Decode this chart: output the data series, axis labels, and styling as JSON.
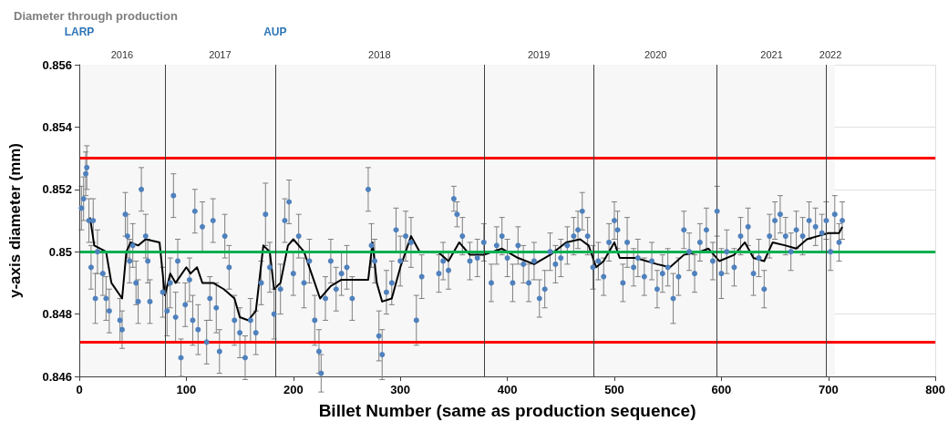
{
  "chart_data": {
    "type": "scatter",
    "title": "Diameter through production",
    "xlabel": "Billet Number (same as production sequence)",
    "ylabel": "y-axis diameter (mm)",
    "xlim": [
      0,
      800
    ],
    "xticks": [
      0,
      100,
      200,
      300,
      400,
      500,
      600,
      700,
      800
    ],
    "ylim": [
      0.846,
      0.856
    ],
    "yticks": [
      0.846,
      0.848,
      0.85,
      0.852,
      0.854,
      0.856
    ],
    "grid": true,
    "series": [
      {
        "color": "#4f81bd",
        "marker": "circle",
        "x": [
          2,
          4,
          6,
          7,
          9,
          11,
          13,
          15,
          17,
          22,
          25,
          28,
          38,
          40,
          43,
          45,
          47,
          50,
          53,
          55,
          58,
          62,
          64,
          66,
          78,
          82,
          85,
          88,
          90,
          92,
          95,
          99,
          103,
          106,
          108,
          111,
          115,
          119,
          122,
          125,
          128,
          131,
          136,
          140,
          145,
          150,
          155,
          160,
          165,
          170,
          174,
          178,
          182,
          188,
          192,
          196,
          200,
          205,
          210,
          215,
          220,
          224,
          226,
          230,
          235,
          240,
          245,
          250,
          255,
          270,
          273,
          276,
          280,
          283,
          287,
          292,
          296,
          300,
          305,
          310,
          315,
          320,
          336,
          340,
          345,
          350,
          353,
          358,
          365,
          372,
          378,
          385,
          390,
          395,
          400,
          405,
          410,
          415,
          420,
          425,
          430,
          435,
          440,
          445,
          450,
          456,
          462,
          466,
          470,
          475,
          480,
          485,
          490,
          495,
          500,
          503,
          508,
          512,
          518,
          522,
          528,
          535,
          540,
          545,
          550,
          555,
          560,
          565,
          570,
          575,
          580,
          586,
          592,
          596,
          600,
          605,
          612,
          618,
          625,
          630,
          635,
          640,
          645,
          650,
          655,
          660,
          665,
          670,
          676,
          682,
          688,
          694,
          698,
          702,
          706,
          710,
          713
        ],
        "values": [
          0.8514,
          0.8517,
          0.8525,
          0.8527,
          0.851,
          0.8495,
          0.851,
          0.8485,
          0.85,
          0.8493,
          0.8485,
          0.8481,
          0.8478,
          0.8475,
          0.8512,
          0.8505,
          0.8497,
          0.8502,
          0.849,
          0.8484,
          0.852,
          0.8505,
          0.8497,
          0.8484,
          0.8487,
          0.8481,
          0.849,
          0.8518,
          0.8479,
          0.8497,
          0.8466,
          0.8483,
          0.8491,
          0.8478,
          0.8513,
          0.8475,
          0.8508,
          0.8471,
          0.8485,
          0.851,
          0.8482,
          0.8468,
          0.8505,
          0.8495,
          0.8478,
          0.8474,
          0.8466,
          0.8478,
          0.8474,
          0.849,
          0.8512,
          0.8495,
          0.848,
          0.8488,
          0.851,
          0.8516,
          0.8493,
          0.8505,
          0.849,
          0.8497,
          0.8478,
          0.8468,
          0.8461,
          0.8485,
          0.8497,
          0.8488,
          0.8493,
          0.8495,
          0.8485,
          0.852,
          0.8502,
          0.8497,
          0.8473,
          0.8467,
          0.8487,
          0.849,
          0.8507,
          0.8497,
          0.8505,
          0.8503,
          0.8478,
          0.8492,
          0.8493,
          0.8497,
          0.8494,
          0.8517,
          0.8512,
          0.8505,
          0.8497,
          0.8498,
          0.8503,
          0.849,
          0.8502,
          0.8505,
          0.8498,
          0.849,
          0.8502,
          0.8496,
          0.849,
          0.8497,
          0.8485,
          0.8488,
          0.85,
          0.8496,
          0.8498,
          0.8502,
          0.8505,
          0.8507,
          0.8513,
          0.8505,
          0.8495,
          0.8497,
          0.8492,
          0.8503,
          0.851,
          0.8507,
          0.849,
          0.8503,
          0.8495,
          0.8498,
          0.8492,
          0.8497,
          0.8488,
          0.8493,
          0.8495,
          0.8485,
          0.8492,
          0.8507,
          0.85,
          0.8493,
          0.8503,
          0.8507,
          0.8497,
          0.8513,
          0.8493,
          0.85,
          0.8495,
          0.8505,
          0.8508,
          0.8493,
          0.8498,
          0.8488,
          0.8505,
          0.851,
          0.8512,
          0.8505,
          0.85,
          0.8507,
          0.8505,
          0.851,
          0.8508,
          0.8506,
          0.851,
          0.85,
          0.8512,
          0.8503,
          0.851
        ],
        "errors": [
          0.0007,
          0.0007,
          0.0007,
          0.0007,
          0.0007,
          0.0007,
          0.0007,
          0.0008,
          0.0007,
          0.0007,
          0.0007,
          0.0007,
          0.0007,
          0.0006,
          0.0007,
          0.0007,
          0.0007,
          0.0007,
          0.0007,
          0.0007,
          0.0007,
          0.0007,
          0.0007,
          0.0007,
          0.0008,
          0.0008,
          0.0008,
          0.0007,
          0.0008,
          0.0007,
          0.0006,
          0.0007,
          0.0007,
          0.0008,
          0.0007,
          0.0008,
          0.0008,
          0.0007,
          0.0007,
          0.0007,
          0.0008,
          0.0007,
          0.0007,
          0.0007,
          0.0008,
          0.0008,
          0.0007,
          0.0007,
          0.0007,
          0.0007,
          0.001,
          0.0008,
          0.0008,
          0.0008,
          0.0007,
          0.0007,
          0.0007,
          0.0007,
          0.0008,
          0.0007,
          0.0008,
          0.0007,
          0.0006,
          0.0007,
          0.0007,
          0.0007,
          0.0007,
          0.0007,
          0.0007,
          0.0007,
          0.0007,
          0.0007,
          0.0008,
          0.0008,
          0.0007,
          0.0007,
          0.0007,
          0.0008,
          0.0008,
          0.0008,
          0.0008,
          0.0007,
          0.0006,
          0.0006,
          0.0006,
          0.0004,
          0.0004,
          0.0006,
          0.0006,
          0.0006,
          0.0006,
          0.0006,
          0.0006,
          0.0006,
          0.0006,
          0.0006,
          0.0006,
          0.0006,
          0.0006,
          0.0006,
          0.0006,
          0.0006,
          0.0006,
          0.0006,
          0.0006,
          0.0006,
          0.0006,
          0.0006,
          0.0006,
          0.0006,
          0.0007,
          0.0006,
          0.0006,
          0.0006,
          0.0006,
          0.0006,
          0.0006,
          0.0008,
          0.0006,
          0.0006,
          0.0006,
          0.0006,
          0.0006,
          0.0006,
          0.0006,
          0.0008,
          0.0006,
          0.0006,
          0.0006,
          0.0006,
          0.0006,
          0.0007,
          0.0006,
          0.0008,
          0.0008,
          0.0007,
          0.0006,
          0.0006,
          0.0006,
          0.0007,
          0.0006,
          0.0006,
          0.0007,
          0.0006,
          0.0006,
          0.0006,
          0.0006,
          0.0006,
          0.0006,
          0.0006,
          0.0006,
          0.0006,
          0.0006,
          0.0006,
          0.0006,
          0.0006,
          0.0006
        ]
      },
      {
        "type": "line",
        "color": "#000000",
        "marker": "none",
        "line_style": "solid",
        "x": [
          10,
          14,
          25,
          30,
          40,
          44,
          48,
          55,
          62,
          75,
          80,
          85,
          90,
          100,
          104,
          110,
          115,
          125,
          135,
          145,
          150,
          158,
          165,
          172,
          178,
          182,
          188,
          195,
          200,
          210,
          220,
          225,
          235,
          245,
          255,
          270,
          274,
          278,
          283,
          292,
          300,
          310,
          318,
          335,
          345,
          355,
          365,
          378,
          395,
          410,
          425,
          440,
          455,
          468,
          476,
          483,
          490,
          500,
          505,
          520,
          540,
          552,
          565,
          580,
          588,
          598,
          612,
          622,
          630,
          640,
          648,
          660,
          670,
          680,
          690,
          700,
          710,
          713
        ],
        "values": [
          0.8511,
          0.8502,
          0.85,
          0.849,
          0.8485,
          0.85,
          0.8503,
          0.8502,
          0.8504,
          0.8503,
          0.8486,
          0.8493,
          0.849,
          0.8495,
          0.8493,
          0.8495,
          0.849,
          0.849,
          0.8488,
          0.8485,
          0.8479,
          0.8478,
          0.8481,
          0.8502,
          0.85,
          0.8488,
          0.849,
          0.8502,
          0.8504,
          0.85,
          0.849,
          0.8485,
          0.8489,
          0.8491,
          0.8491,
          0.8491,
          0.8503,
          0.849,
          0.8484,
          0.8485,
          0.8495,
          0.8505,
          0.85,
          0.85,
          0.8497,
          0.8503,
          0.8499,
          0.8499,
          0.8501,
          0.8498,
          0.8496,
          0.8499,
          0.8503,
          0.8504,
          0.8502,
          0.8495,
          0.8497,
          0.8503,
          0.8498,
          0.8498,
          0.8496,
          0.8495,
          0.8499,
          0.85,
          0.8501,
          0.8497,
          0.8499,
          0.8503,
          0.8498,
          0.8497,
          0.8503,
          0.8502,
          0.8501,
          0.8504,
          0.8505,
          0.8506,
          0.8506,
          0.8508
        ]
      }
    ],
    "ref_lines": [
      {
        "axis": "y",
        "value": 0.853,
        "label": null,
        "color": "#ff0000",
        "line_style": "solid"
      },
      {
        "axis": "y",
        "value": 0.8471,
        "label": null,
        "color": "#ff0000",
        "line_style": "solid"
      },
      {
        "axis": "y",
        "value": 0.85,
        "label": null,
        "color": "#00b050",
        "line_style": "solid"
      },
      {
        "axis": "x",
        "value": 0,
        "label": "LARP",
        "color": "#404040",
        "line_style": "solid"
      },
      {
        "axis": "x",
        "value": 80,
        "label": null,
        "color": "#404040",
        "line_style": "solid"
      },
      {
        "axis": "x",
        "value": 183,
        "label": "AUP",
        "color": "#404040",
        "line_style": "solid"
      },
      {
        "axis": "x",
        "value": 378,
        "label": null,
        "color": "#404040",
        "line_style": "solid"
      },
      {
        "axis": "x",
        "value": 481,
        "label": null,
        "color": "#404040",
        "line_style": "solid"
      },
      {
        "axis": "x",
        "value": 596,
        "label": null,
        "color": "#404040",
        "line_style": "solid"
      },
      {
        "axis": "x",
        "value": 698,
        "label": null,
        "color": "#404040",
        "line_style": "solid"
      }
    ],
    "bands": [
      {
        "axis": "x",
        "from": 0,
        "to": 80,
        "label": "2016",
        "color": "#f7f7f7"
      },
      {
        "axis": "x",
        "from": 80,
        "to": 183,
        "label": "2017",
        "color": "#f7f7f7"
      },
      {
        "axis": "x",
        "from": 183,
        "to": 378,
        "label": "2018",
        "color": "#f7f7f7"
      },
      {
        "axis": "x",
        "from": 378,
        "to": 481,
        "label": "2019",
        "color": "#f7f7f7"
      },
      {
        "axis": "x",
        "from": 481,
        "to": 596,
        "label": "2020",
        "color": "#f7f7f7"
      },
      {
        "axis": "x",
        "from": 596,
        "to": 698,
        "label": "2021",
        "color": "#f7f7f7"
      },
      {
        "axis": "x",
        "from": 698,
        "to": 706,
        "label": "2022",
        "color": "#f7f7f7"
      }
    ]
  }
}
